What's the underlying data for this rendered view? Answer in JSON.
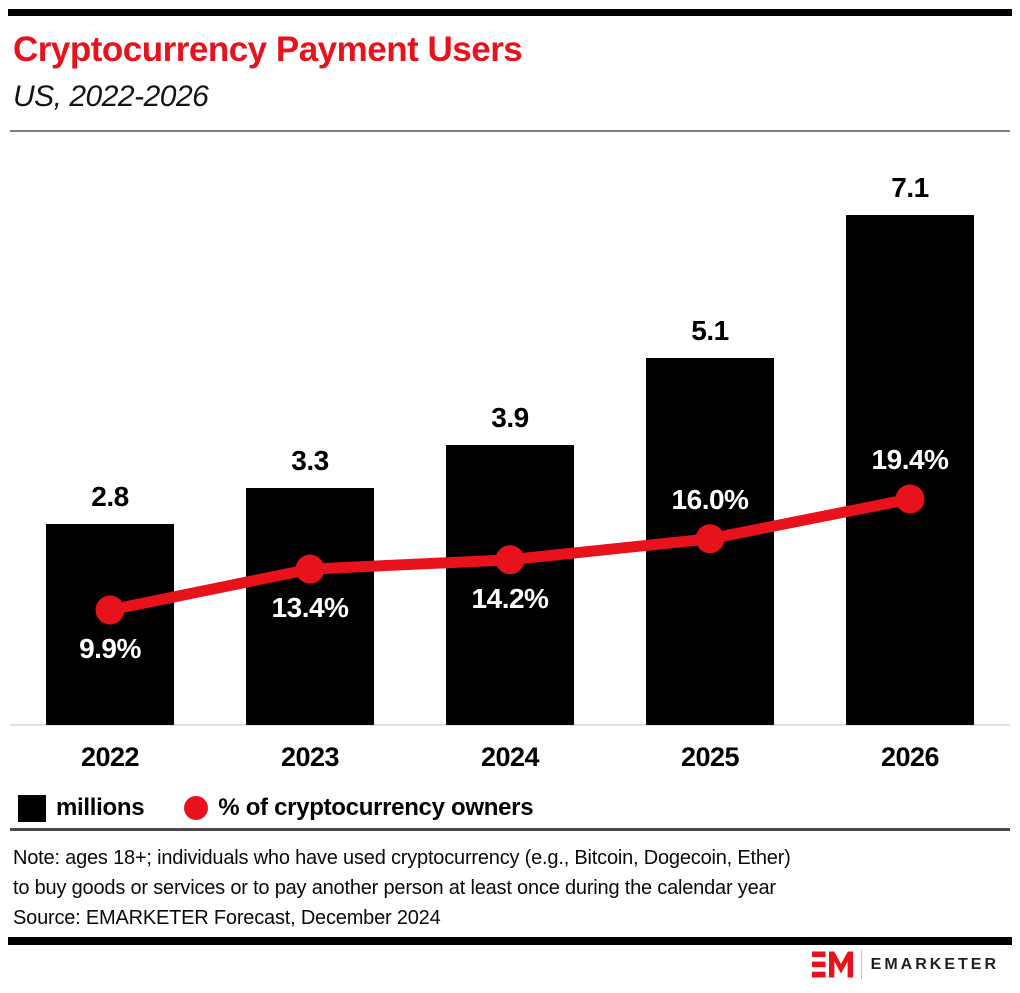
{
  "chart_data": {
    "type": "bar+line",
    "title": "Cryptocurrency Payment Users",
    "subtitle": "US, 2022-2026",
    "categories": [
      "2022",
      "2023",
      "2024",
      "2025",
      "2026"
    ],
    "series": [
      {
        "name": "millions",
        "type": "bar",
        "values": [
          2.8,
          3.3,
          3.9,
          5.1,
          7.1
        ],
        "labels": [
          "2.8",
          "3.3",
          "3.9",
          "5.1",
          "7.1"
        ],
        "color": "#000000"
      },
      {
        "name": "% of cryptocurrency owners",
        "type": "line",
        "values": [
          9.9,
          13.4,
          14.2,
          16.0,
          19.4
        ],
        "labels": [
          "9.9%",
          "13.4%",
          "14.2%",
          "16.0%",
          "19.4%"
        ],
        "label_positions": [
          "below",
          "below",
          "below",
          "above",
          "above"
        ],
        "color": "#e8121c"
      }
    ],
    "xlabel": "",
    "ylabel": "",
    "axis_ticks_visible": false,
    "grid": false,
    "legend_position": "bottom"
  },
  "legend": {
    "items": [
      {
        "swatch": "square",
        "color": "#000000",
        "label": "millions"
      },
      {
        "swatch": "circle",
        "color": "#e8121c",
        "label": "% of cryptocurrency owners"
      }
    ]
  },
  "notes": {
    "lines": [
      "Note: ages 18+; individuals who have used cryptocurrency (e.g., Bitcoin, Dogecoin, Ether)",
      "to buy goods or services or to pay another person at least once during the calendar year",
      "Source: EMARKETER Forecast, December 2024"
    ]
  },
  "footer": {
    "logo": "EM",
    "brand": "EMARKETER"
  },
  "colors": {
    "accent_red": "#e8121c",
    "bar_black": "#000000",
    "baseline_gray": "#dde2ec"
  }
}
